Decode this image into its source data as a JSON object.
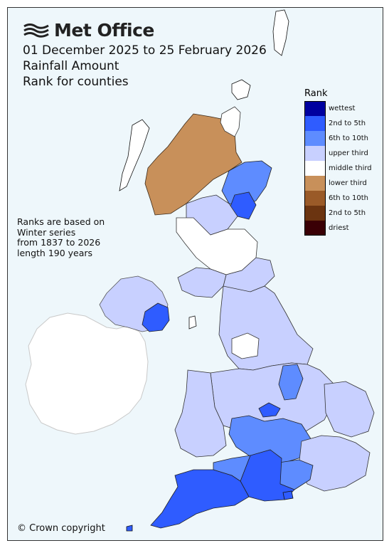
{
  "header": {
    "logo_text": "Met Office",
    "period": "01 December 2025 to 25 February 2026",
    "variable": "Rainfall Amount",
    "subtitle": "Rank for counties"
  },
  "note": [
    "Ranks are based on",
    "Winter series",
    "from 1837 to 2026",
    "length 190 years"
  ],
  "copyright": "© Crown copyright",
  "legend": {
    "title": "Rank",
    "items": [
      {
        "label": "wettest",
        "color": "#00009f"
      },
      {
        "label": "2nd to 5th",
        "color": "#2f5cff"
      },
      {
        "label": "6th to 10th",
        "color": "#5e8cff"
      },
      {
        "label": "upper third",
        "color": "#c8d0ff"
      },
      {
        "label": "middle third",
        "color": "#ffffff"
      },
      {
        "label": "lower third",
        "color": "#c8905a"
      },
      {
        "label": "6th to 10th",
        "color": "#9a5a28"
      },
      {
        "label": "2nd to 5th",
        "color": "#6b3410"
      },
      {
        "label": "driest",
        "color": "#3a0005"
      }
    ]
  },
  "map_colors": {
    "sea": "#eef7fb",
    "ireland": "#ffffff",
    "border": "#1a1a1a"
  }
}
